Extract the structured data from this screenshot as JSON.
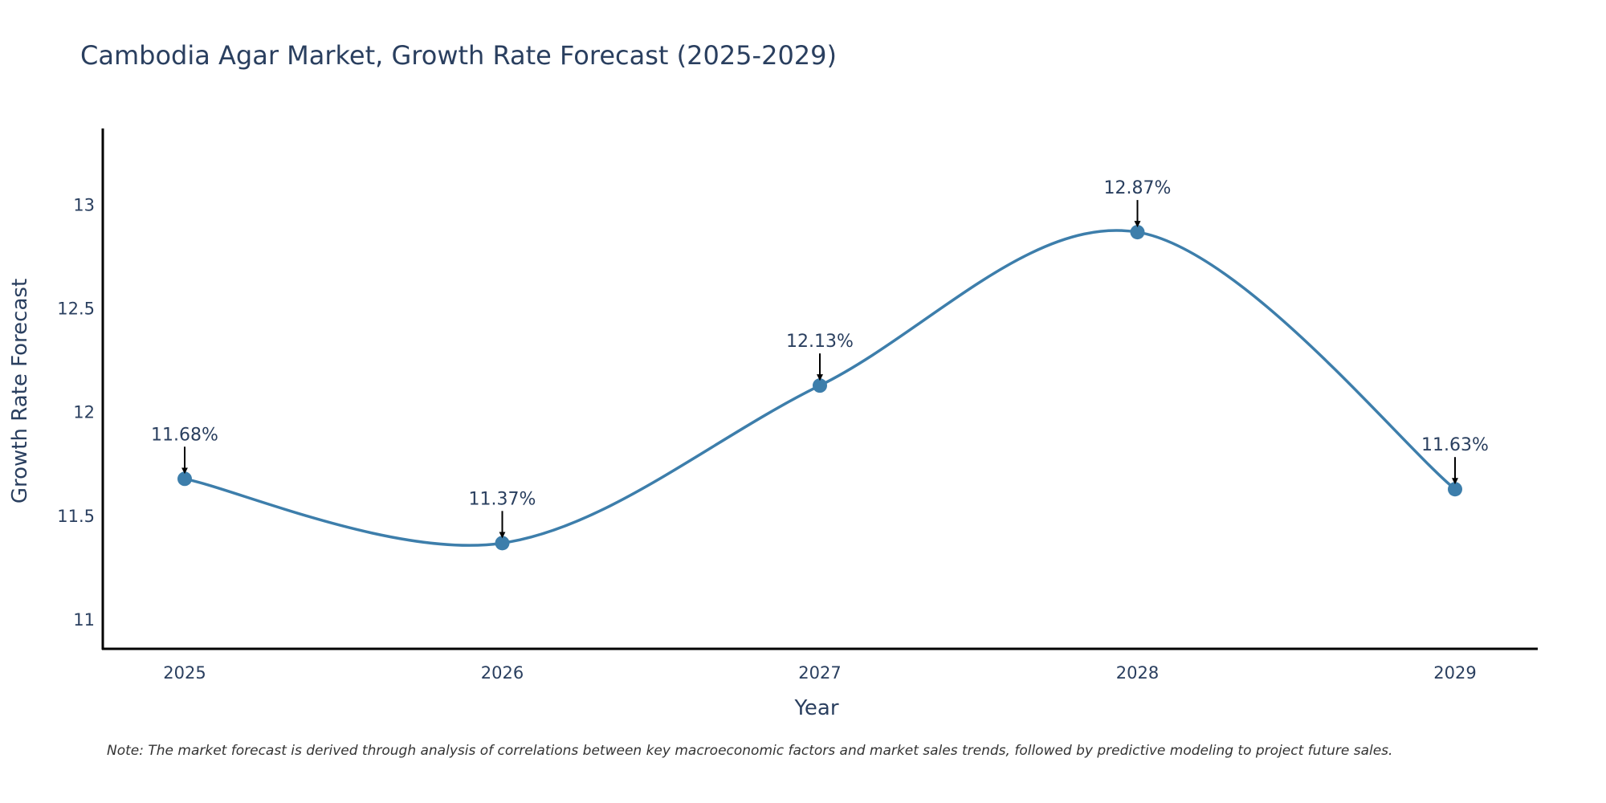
{
  "chart_data": {
    "type": "line",
    "title": "Cambodia Agar Market, Growth Rate Forecast (2025-2029)",
    "xlabel": "Year",
    "ylabel": "Growth Rate Forecast",
    "categories": [
      "2025",
      "2026",
      "2027",
      "2028",
      "2029"
    ],
    "series": [
      {
        "name": "Growth Rate Forecast",
        "values": [
          11.68,
          11.37,
          12.13,
          12.87,
          11.63
        ],
        "labels": [
          "11.68%",
          "11.37%",
          "12.13%",
          "12.87%",
          "11.63%"
        ]
      }
    ],
    "yticks": [
      "11",
      "11.5",
      "12",
      "12.5",
      "13"
    ],
    "ylim": [
      10.86,
      13.37
    ],
    "grid": false,
    "line_shape": "spline",
    "colors": {
      "line": "#3d7eab",
      "marker": "#3d7eab",
      "arrow": "#000000",
      "axis": "#000000"
    },
    "note": "Note: The market forecast is derived through analysis of correlations between key macroeconomic factors and market sales trends, followed by predictive modeling to project future sales."
  }
}
